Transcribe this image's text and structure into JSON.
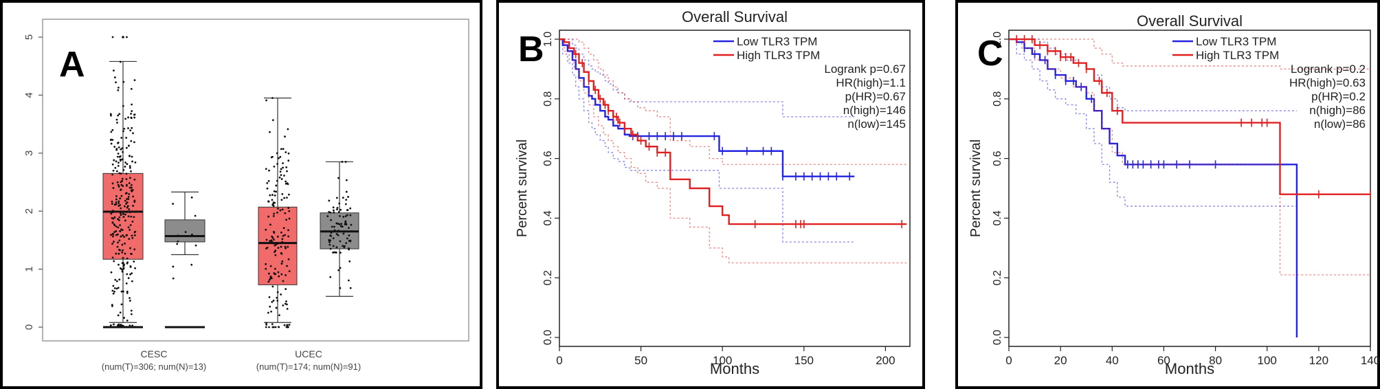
{
  "chart_data": [
    {
      "panel": "A",
      "type": "box",
      "title": "",
      "ylim": [
        0,
        5.3
      ],
      "yticks": [
        "0",
        "1",
        "2",
        "3",
        "4",
        "5"
      ],
      "groups": [
        {
          "name": "CESC",
          "sub": "(num(T)=306; num(N)=13)"
        },
        {
          "name": "UCEC",
          "sub": "(num(T)=174; num(N)=91)"
        }
      ],
      "boxes": [
        {
          "group": "CESC",
          "kind": "Tumor",
          "color": "#f26b6b",
          "q1": 1.17,
          "median": 1.99,
          "q3": 2.65,
          "whisker_low": 0.08,
          "whisker_high": 4.58,
          "max_outlier": 5.0
        },
        {
          "group": "CESC",
          "kind": "Normal",
          "color": "#8c8c8c",
          "q1": 1.47,
          "median": 1.57,
          "q3": 1.85,
          "whisker_low": 1.25,
          "whisker_high": 2.33,
          "max_outlier": 2.33
        },
        {
          "group": "UCEC",
          "kind": "Tumor",
          "color": "#f26b6b",
          "q1": 0.73,
          "median": 1.45,
          "q3": 2.07,
          "whisker_low": 0.08,
          "whisker_high": 3.95,
          "max_outlier": 3.95
        },
        {
          "group": "UCEC",
          "kind": "Normal",
          "color": "#8c8c8c",
          "q1": 1.35,
          "median": 1.65,
          "q3": 1.97,
          "whisker_low": 0.53,
          "whisker_high": 2.85,
          "max_outlier": 2.85
        }
      ]
    },
    {
      "panel": "B",
      "type": "line",
      "title": "Overall Survival",
      "xlabel": "Months",
      "ylabel": "Percent survival",
      "xlim": [
        0,
        215
      ],
      "ylim": [
        -0.03,
        1.03
      ],
      "xticks": [
        "0",
        "50",
        "100",
        "150",
        "200"
      ],
      "yticks": [
        "0.0",
        "0.2",
        "0.4",
        "0.6",
        "0.8",
        "1.0"
      ],
      "legend": [
        "Low TLR3 TPM",
        "High TLR3 TPM"
      ],
      "stats": [
        "Logrank p=0.67",
        "HR(high)=1.1",
        "p(HR)=0.67",
        "n(high)=146",
        "n(low)=145"
      ],
      "series": [
        {
          "name": "Low TLR3 TPM",
          "color": "#2323e0",
          "x": [
            0,
            2,
            5,
            8,
            10,
            12,
            15,
            18,
            20,
            22,
            25,
            28,
            30,
            33,
            36,
            40,
            43,
            98,
            137,
            181
          ],
          "y": [
            1.0,
            0.98,
            0.96,
            0.93,
            0.9,
            0.87,
            0.84,
            0.81,
            0.8,
            0.78,
            0.76,
            0.74,
            0.73,
            0.71,
            0.7,
            0.68,
            0.675,
            0.625,
            0.54,
            0.54
          ],
          "censor_x": [
            45,
            48,
            55,
            60,
            65,
            70,
            75,
            95,
            100,
            115,
            125,
            130,
            137,
            145,
            150,
            155,
            160,
            165,
            170,
            178
          ],
          "ci_upper_y": [
            1.0,
            1.0,
            1.0,
            0.98,
            0.97,
            0.95,
            0.93,
            0.91,
            0.9,
            0.89,
            0.88,
            0.86,
            0.85,
            0.83,
            0.82,
            0.8,
            0.79,
            0.79,
            0.74,
            0.74
          ],
          "ci_lower_y": [
            1.0,
            0.95,
            0.92,
            0.88,
            0.84,
            0.8,
            0.76,
            0.72,
            0.7,
            0.68,
            0.66,
            0.64,
            0.62,
            0.6,
            0.59,
            0.57,
            0.56,
            0.5,
            0.32,
            0.32
          ]
        },
        {
          "name": "High TLR3 TPM",
          "color": "#e02020",
          "x": [
            0,
            3,
            6,
            9,
            12,
            15,
            18,
            21,
            24,
            27,
            30,
            33,
            36,
            40,
            44,
            48,
            53,
            60,
            68,
            80,
            92,
            100,
            104,
            213
          ],
          "y": [
            1.0,
            0.99,
            0.97,
            0.95,
            0.92,
            0.89,
            0.86,
            0.83,
            0.8,
            0.78,
            0.76,
            0.74,
            0.72,
            0.7,
            0.68,
            0.66,
            0.64,
            0.62,
            0.53,
            0.5,
            0.44,
            0.41,
            0.38,
            0.38
          ],
          "censor_x": [
            10,
            14,
            18,
            22,
            25,
            28,
            30,
            33,
            35,
            37,
            40,
            45,
            50,
            55,
            60,
            65,
            120,
            145,
            148,
            150,
            210
          ],
          "ci_upper_y": [
            1.0,
            1.0,
            1.0,
            1.0,
            0.99,
            0.97,
            0.95,
            0.93,
            0.9,
            0.88,
            0.86,
            0.84,
            0.82,
            0.8,
            0.79,
            0.77,
            0.76,
            0.74,
            0.66,
            0.64,
            0.6,
            0.58,
            0.58,
            0.58
          ],
          "ci_lower_y": [
            1.0,
            0.96,
            0.93,
            0.9,
            0.86,
            0.82,
            0.78,
            0.74,
            0.71,
            0.68,
            0.66,
            0.64,
            0.62,
            0.6,
            0.57,
            0.55,
            0.52,
            0.5,
            0.4,
            0.37,
            0.3,
            0.27,
            0.25,
            0.25
          ]
        }
      ]
    },
    {
      "panel": "C",
      "type": "line",
      "title": "Overall Survival",
      "xlabel": "Months",
      "ylabel": "Percent survival",
      "xlim": [
        0,
        140
      ],
      "ylim": [
        -0.03,
        1.03
      ],
      "xticks": [
        "0",
        "20",
        "40",
        "60",
        "80",
        "100",
        "120",
        "140"
      ],
      "yticks": [
        "0.0",
        "0.2",
        "0.4",
        "0.6",
        "0.8",
        "1.0"
      ],
      "legend": [
        "Low TLR3 TPM",
        "High TLR3 TPM"
      ],
      "stats": [
        "Logrank p=0.2",
        "HR(high)=0.63",
        "p(HR)=0.2",
        "n(high)=86",
        "n(low)=86"
      ],
      "series": [
        {
          "name": "Low TLR3 TPM",
          "color": "#2323e0",
          "x": [
            0,
            3,
            6,
            9,
            12,
            15,
            18,
            22,
            26,
            30,
            33,
            36,
            39,
            42,
            45,
            111,
            111.5
          ],
          "y": [
            1.0,
            0.99,
            0.97,
            0.95,
            0.93,
            0.9,
            0.88,
            0.86,
            0.84,
            0.8,
            0.76,
            0.7,
            0.65,
            0.61,
            0.58,
            0.58,
            0.0
          ],
          "censor_x": [
            6,
            10,
            14,
            18,
            22,
            25,
            28,
            32,
            46,
            48,
            50,
            52,
            55,
            58,
            60,
            65,
            70,
            80
          ],
          "ci_upper_y": [
            1.0,
            1.0,
            1.0,
            1.0,
            0.99,
            0.97,
            0.95,
            0.93,
            0.92,
            0.9,
            0.88,
            0.84,
            0.8,
            0.77,
            0.76,
            0.76,
            0.76
          ],
          "ci_lower_y": [
            1.0,
            0.95,
            0.93,
            0.9,
            0.86,
            0.83,
            0.8,
            0.78,
            0.75,
            0.7,
            0.65,
            0.58,
            0.52,
            0.47,
            0.44,
            0.44,
            0.44
          ]
        },
        {
          "name": "High TLR3 TPM",
          "color": "#e02020",
          "x": [
            0,
            5,
            10,
            15,
            20,
            25,
            30,
            33,
            36,
            40,
            44,
            104,
            105,
            140
          ],
          "y": [
            1.0,
            1.0,
            0.98,
            0.96,
            0.94,
            0.92,
            0.9,
            0.86,
            0.82,
            0.76,
            0.72,
            0.72,
            0.48,
            0.48
          ],
          "censor_x": [
            3,
            6,
            9,
            12,
            15,
            18,
            20,
            22,
            24,
            27,
            30,
            35,
            38,
            42,
            90,
            94,
            98,
            100,
            120,
            140
          ],
          "ci_upper_y": [
            1.0,
            1.0,
            1.0,
            1.0,
            1.0,
            1.0,
            1.0,
            0.97,
            0.95,
            0.92,
            0.91,
            0.91,
            0.9,
            0.9
          ],
          "ci_lower_y": [
            1.0,
            0.97,
            0.93,
            0.9,
            0.87,
            0.84,
            0.82,
            0.76,
            0.7,
            0.62,
            0.58,
            0.58,
            0.21,
            0.21
          ]
        }
      ]
    }
  ],
  "panel_labels": {
    "a": "A",
    "b": "B",
    "c": "C"
  }
}
